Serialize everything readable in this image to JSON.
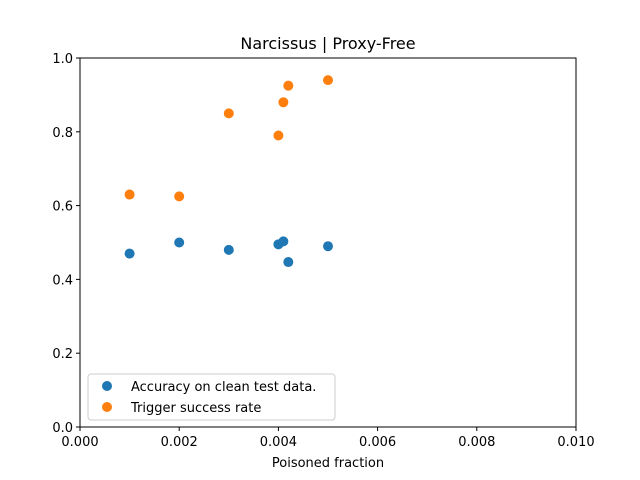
{
  "chart_data": {
    "type": "scatter",
    "title": "Narcissus | Proxy-Free",
    "xlabel": "Poisoned fraction",
    "ylabel": "",
    "xlim": [
      0,
      0.01
    ],
    "ylim": [
      0,
      1.0
    ],
    "xticks": [
      "0.000",
      "0.002",
      "0.004",
      "0.006",
      "0.008",
      "0.010"
    ],
    "yticks": [
      "0.0",
      "0.2",
      "0.4",
      "0.6",
      "0.8",
      "1.0"
    ],
    "grid": false,
    "legend_position": "lower-left",
    "series": [
      {
        "name": "Accuracy on clean test data.",
        "color": "#1f77b4",
        "x": [
          0.001,
          0.002,
          0.003,
          0.004,
          0.0041,
          0.0042,
          0.005
        ],
        "y": [
          0.47,
          0.5,
          0.48,
          0.495,
          0.503,
          0.447,
          0.49
        ]
      },
      {
        "name": "Trigger success rate",
        "color": "#ff7f0e",
        "x": [
          0.001,
          0.002,
          0.003,
          0.004,
          0.0041,
          0.0042,
          0.005
        ],
        "y": [
          0.63,
          0.625,
          0.85,
          0.79,
          0.88,
          0.925,
          0.94
        ]
      }
    ]
  }
}
